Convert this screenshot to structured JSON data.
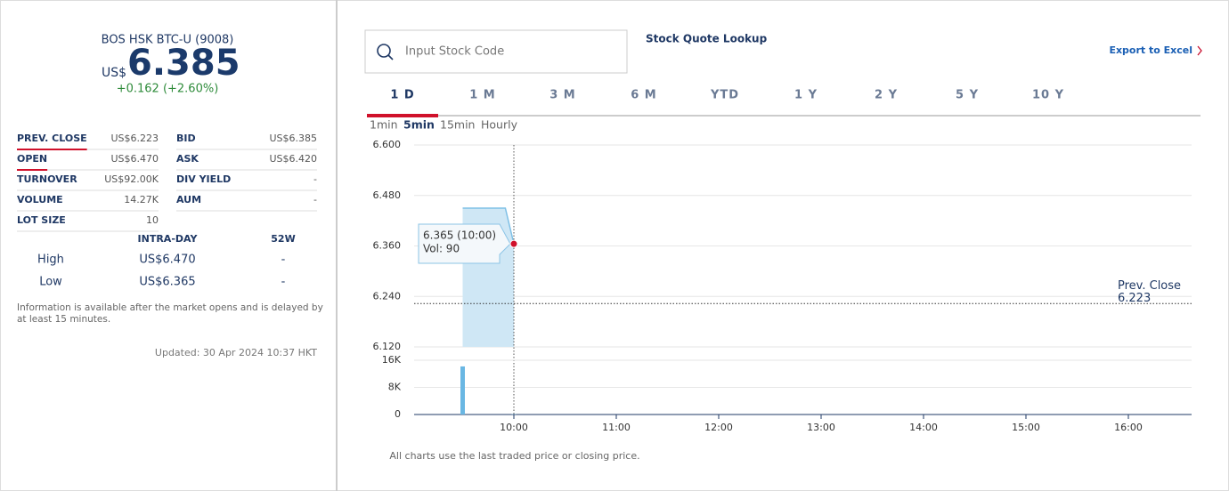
{
  "header": {
    "name": "BOS HSK BTC-U (9008)",
    "currency": "US$",
    "price": "6.385",
    "change": "+0.162 (+2.60%)"
  },
  "stats": [
    [
      "PREV. CLOSE",
      "US$6.223",
      "BID",
      "US$6.385"
    ],
    [
      "OPEN",
      "US$6.470",
      "ASK",
      "US$6.420"
    ],
    [
      "TURNOVER",
      "US$92.00K",
      "DIV YIELD",
      "-"
    ],
    [
      "VOLUME",
      "14.27K",
      "AUM",
      "-"
    ],
    [
      "LOT SIZE",
      "10"
    ]
  ],
  "range": {
    "headers": [
      "INTRA-DAY",
      "52W"
    ],
    "rows": [
      [
        "High",
        "US$6.470",
        "-"
      ],
      [
        "Low",
        "US$6.365",
        "-"
      ]
    ]
  },
  "note": [
    "Information is available after the market opens and is delayed by",
    "at least 15 minutes."
  ],
  "updated": "Updated: 30 Apr 2024 10:37 HKT",
  "search": {
    "placeholder": "Input Stock Code",
    "title": "Stock Quote Lookup"
  },
  "export": "Export to Excel",
  "tabs": [
    "1 D",
    "1 M",
    "3 M",
    "6 M",
    "YTD",
    "1 Y",
    "2 Y",
    "5 Y",
    "10 Y"
  ],
  "intervals": [
    "1min",
    "5min",
    "15min",
    "Hourly"
  ],
  "tooltip": [
    "6.365 (10:00)",
    "Vol: 90"
  ],
  "footnote": "All charts use the last traded price or closing price.",
  "chart_data": [
    {
      "type": "area",
      "x": [
        9.5,
        9.9167,
        10
      ],
      "values": [
        6.45,
        6.45,
        6.365
      ],
      "color": "#7fc0e6",
      "fill": "#cfe7f5",
      "xlim": [
        9,
        16.6
      ],
      "ylim": [
        6.12,
        6.6
      ],
      "yticks": [
        {
          "value": 6.12,
          "label": "6.120"
        },
        {
          "value": 6.24,
          "label": "6.240"
        },
        {
          "value": 6.36,
          "label": "6.360"
        },
        {
          "value": 6.48,
          "label": "6.480"
        },
        {
          "value": 6.6,
          "label": "6.600"
        }
      ],
      "grid": true,
      "reference_line": {
        "label": "Prev. Close",
        "value": 6.223,
        "value_label": "6.223"
      }
    },
    {
      "type": "bar",
      "x": [
        9.5,
        10
      ],
      "values": [
        14180,
        90
      ],
      "color": "#6ab7e3",
      "xlim": [
        9,
        16.6
      ],
      "ylim": [
        0,
        16000
      ],
      "yticks": [
        0,
        {
          "value": 8000,
          "label": "8K"
        },
        {
          "value": 16000,
          "label": "16K"
        }
      ],
      "xticks": [
        {
          "value": 10,
          "label": "10:00"
        },
        {
          "value": 11,
          "label": "11:00"
        },
        {
          "value": 12,
          "label": "12:00"
        },
        {
          "value": 13,
          "label": "13:00"
        },
        {
          "value": 14,
          "label": "14:00"
        },
        {
          "value": 15,
          "label": "15:00"
        },
        {
          "value": 16,
          "label": "16:00"
        }
      ],
      "grid": true
    }
  ]
}
